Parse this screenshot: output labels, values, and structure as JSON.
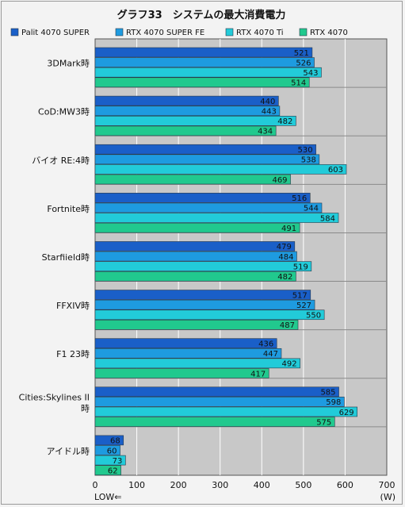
{
  "chart_data": {
    "type": "bar",
    "orientation": "horizontal",
    "title": "グラフ33　システムの最大消費電力",
    "categories": [
      "3DMark時",
      "CoD:MW3時",
      "バイオ RE:4時",
      "Fortnite時",
      "Starfiield時",
      "FFXIV時",
      "F1 23時",
      "Cities:Skylines II 時",
      "アイドル時"
    ],
    "category_lines": [
      [
        "3DMark時"
      ],
      [
        "CoD:MW3時"
      ],
      [
        "バイオ RE:4時"
      ],
      [
        "Fortnite時"
      ],
      [
        "Starfiield時"
      ],
      [
        "FFXIV時"
      ],
      [
        "F1 23時"
      ],
      [
        "Cities:Skylines II",
        "時"
      ],
      [
        "アイドル時"
      ]
    ],
    "series": [
      {
        "name": "Palit 4070 SUPER",
        "color": "#1a5fc8",
        "values": [
          521,
          440,
          530,
          516,
          479,
          517,
          436,
          585,
          68
        ]
      },
      {
        "name": "RTX 4070 SUPER FE",
        "color": "#1e9be0",
        "values": [
          526,
          443,
          538,
          544,
          484,
          527,
          447,
          598,
          60
        ]
      },
      {
        "name": "RTX 4070 Ti",
        "color": "#22cbd9",
        "values": [
          543,
          482,
          603,
          584,
          519,
          550,
          492,
          629,
          73
        ]
      },
      {
        "name": "RTX 4070",
        "color": "#21c98e",
        "values": [
          514,
          434,
          469,
          491,
          482,
          487,
          417,
          575,
          62
        ]
      }
    ],
    "xlim": [
      0,
      700
    ],
    "xticks": [
      0,
      100,
      200,
      300,
      400,
      500,
      600,
      700
    ],
    "xlabel_left": "LOW⇐",
    "xlabel_right": "(W)",
    "grid": true,
    "legend_position": "top"
  }
}
